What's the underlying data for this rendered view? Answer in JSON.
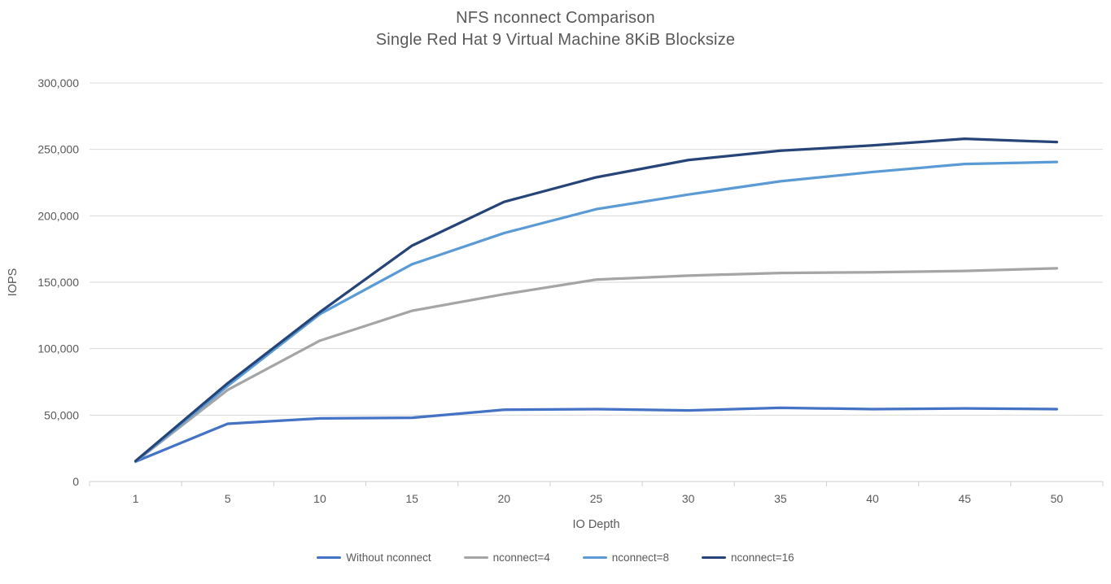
{
  "chart_data": {
    "type": "line",
    "title_line1": "NFS nconnect Comparison",
    "title_line2": "Single Red Hat 9 Virtual Machine 8KiB Blocksize",
    "xlabel": "IO Depth",
    "ylabel": "IOPS",
    "categories": [
      1,
      5,
      10,
      15,
      20,
      25,
      30,
      35,
      40,
      45,
      50
    ],
    "series": [
      {
        "name": "Without nconnect",
        "color": "#4472C4",
        "values": [
          15000,
          43500,
          47500,
          48000,
          54000,
          54500,
          53500,
          55500,
          54500,
          55000,
          54500
        ]
      },
      {
        "name": "nconnect=4",
        "color": "#A5A5A5",
        "values": [
          15000,
          69000,
          106000,
          128500,
          141000,
          152000,
          155000,
          157000,
          157500,
          158500,
          160500
        ]
      },
      {
        "name": "nconnect=8",
        "color": "#5B9BD5",
        "values": [
          15000,
          72000,
          126000,
          163500,
          187000,
          205000,
          216000,
          226000,
          233000,
          239000,
          240500
        ]
      },
      {
        "name": "nconnect=16",
        "color": "#264478",
        "values": [
          15500,
          74000,
          127500,
          177500,
          210500,
          229000,
          242000,
          249000,
          253000,
          258000,
          255500
        ]
      }
    ],
    "ylim": [
      0,
      300000
    ],
    "ytick_step": 50000,
    "ytick_labels": [
      "0",
      "50,000",
      "100,000",
      "150,000",
      "200,000",
      "250,000",
      "300,000"
    ],
    "grid": "horizontal",
    "legend_position": "bottom",
    "text_color": "#595959",
    "grid_color": "#D9D9D9",
    "axis_line_color": "#D0D0D0",
    "background_color": "#FFFFFF"
  }
}
